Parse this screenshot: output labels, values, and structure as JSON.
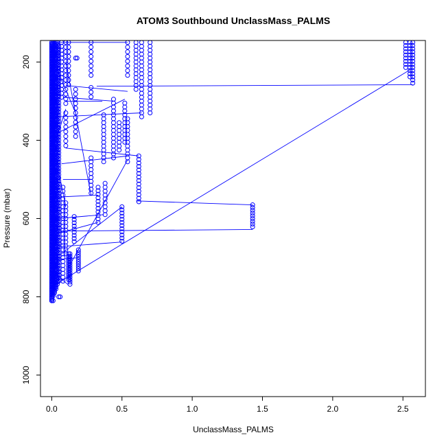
{
  "chart_data": {
    "type": "scatter",
    "title": "ATOM3 Southbound UnclassMass_PALMS",
    "xlabel": "UnclassMass_PALMS",
    "ylabel": "Pressure (mbar)",
    "xlim": [
      -0.08,
      2.66
    ],
    "ylim": [
      1055,
      145
    ],
    "y_reversed": true,
    "grid": false,
    "legend": "none",
    "x_ticks": [
      0.0,
      0.5,
      1.0,
      1.5,
      2.0,
      2.5
    ],
    "x_tick_labels": [
      "0.0",
      "0.5",
      "1.0",
      "1.5",
      "2.0",
      "2.5"
    ],
    "y_ticks": [
      200,
      400,
      600,
      800,
      1000
    ],
    "y_tick_labels": [
      "200",
      "400",
      "600",
      "800",
      "1000"
    ],
    "series": [
      {
        "color": "#0000ff",
        "marker": "open-circle",
        "columns": [
          {
            "x": 0.0,
            "p_min": 150,
            "p_max": 810,
            "step": 3
          },
          {
            "x": 0.01,
            "p_min": 150,
            "p_max": 800,
            "step": 4
          },
          {
            "x": 0.02,
            "p_min": 150,
            "p_max": 790,
            "step": 4
          },
          {
            "x": 0.03,
            "p_min": 150,
            "p_max": 780,
            "step": 5
          },
          {
            "x": 0.04,
            "p_min": 150,
            "p_max": 770,
            "step": 6
          },
          {
            "x": 0.05,
            "p_min": 160,
            "p_max": 760,
            "step": 8
          },
          {
            "x": 0.07,
            "p_min": 150,
            "p_max": 290,
            "step": 10
          },
          {
            "x": 0.08,
            "p_min": 520,
            "p_max": 760,
            "step": 10
          },
          {
            "x": 0.1,
            "p_min": 150,
            "p_max": 310,
            "step": 12
          },
          {
            "x": 0.1,
            "p_min": 330,
            "p_max": 415,
            "step": 12
          },
          {
            "x": 0.1,
            "p_min": 560,
            "p_max": 690,
            "step": 10
          },
          {
            "x": 0.12,
            "p_min": 150,
            "p_max": 265,
            "step": 12
          },
          {
            "x": 0.12,
            "p_min": 690,
            "p_max": 760,
            "step": 6
          },
          {
            "x": 0.13,
            "p_min": 690,
            "p_max": 770,
            "step": 6
          },
          {
            "x": 0.16,
            "p_min": 595,
            "p_max": 660,
            "step": 8
          },
          {
            "x": 0.17,
            "p_min": 270,
            "p_max": 400,
            "step": 12
          },
          {
            "x": 0.19,
            "p_min": 680,
            "p_max": 735,
            "step": 6
          },
          {
            "x": 0.28,
            "p_min": 150,
            "p_max": 245,
            "step": 12
          },
          {
            "x": 0.28,
            "p_min": 265,
            "p_max": 295,
            "step": 12
          },
          {
            "x": 0.28,
            "p_min": 445,
            "p_max": 540,
            "step": 10
          },
          {
            "x": 0.33,
            "p_min": 520,
            "p_max": 610,
            "step": 9
          },
          {
            "x": 0.37,
            "p_min": 335,
            "p_max": 460,
            "step": 10
          },
          {
            "x": 0.38,
            "p_min": 510,
            "p_max": 590,
            "step": 10
          },
          {
            "x": 0.44,
            "p_min": 295,
            "p_max": 445,
            "step": 10
          },
          {
            "x": 0.48,
            "p_min": 355,
            "p_max": 430,
            "step": 10
          },
          {
            "x": 0.5,
            "p_min": 570,
            "p_max": 665,
            "step": 8
          },
          {
            "x": 0.52,
            "p_min": 305,
            "p_max": 410,
            "step": 10
          },
          {
            "x": 0.54,
            "p_min": 150,
            "p_max": 245,
            "step": 12
          },
          {
            "x": 0.54,
            "p_min": 345,
            "p_max": 455,
            "step": 10
          },
          {
            "x": 0.6,
            "p_min": 150,
            "p_max": 275,
            "step": 10
          },
          {
            "x": 0.62,
            "p_min": 440,
            "p_max": 565,
            "step": 9
          },
          {
            "x": 0.64,
            "p_min": 150,
            "p_max": 345,
            "step": 10
          },
          {
            "x": 0.7,
            "p_min": 150,
            "p_max": 330,
            "step": 10
          },
          {
            "x": 1.43,
            "p_min": 565,
            "p_max": 625,
            "step": 7
          },
          {
            "x": 2.52,
            "p_min": 150,
            "p_max": 220,
            "step": 8
          },
          {
            "x": 2.55,
            "p_min": 150,
            "p_max": 240,
            "step": 8
          },
          {
            "x": 2.57,
            "p_min": 150,
            "p_max": 255,
            "step": 8
          }
        ],
        "points": [
          {
            "x": 0.17,
            "y": 190
          },
          {
            "x": 0.18,
            "y": 190
          },
          {
            "x": 0.05,
            "y": 800
          },
          {
            "x": 0.06,
            "y": 800
          },
          {
            "x": 0.01,
            "y": 810
          },
          {
            "x": 0.0,
            "y": 810
          }
        ],
        "segments": [
          {
            "x1": 0.32,
            "y1": 262,
            "x2": 2.57,
            "y2": 258
          },
          {
            "x1": 0.02,
            "y1": 770,
            "x2": 2.55,
            "y2": 220
          },
          {
            "x1": 0.6,
            "y1": 555,
            "x2": 1.43,
            "y2": 565
          },
          {
            "x1": 0.05,
            "y1": 632,
            "x2": 1.43,
            "y2": 628
          },
          {
            "x1": 0.05,
            "y1": 672,
            "x2": 0.5,
            "y2": 660
          },
          {
            "x1": 0.08,
            "y1": 290,
            "x2": 0.44,
            "y2": 300
          },
          {
            "x1": 0.05,
            "y1": 380,
            "x2": 0.52,
            "y2": 295
          },
          {
            "x1": 0.1,
            "y1": 260,
            "x2": 0.54,
            "y2": 275
          },
          {
            "x1": 0.07,
            "y1": 460,
            "x2": 0.54,
            "y2": 440
          },
          {
            "x1": 0.1,
            "y1": 420,
            "x2": 0.62,
            "y2": 440
          },
          {
            "x1": 0.04,
            "y1": 340,
            "x2": 0.64,
            "y2": 330
          },
          {
            "x1": 0.05,
            "y1": 545,
            "x2": 0.33,
            "y2": 540
          },
          {
            "x1": 0.12,
            "y1": 725,
            "x2": 0.54,
            "y2": 450
          },
          {
            "x1": 0.07,
            "y1": 690,
            "x2": 0.5,
            "y2": 570
          },
          {
            "x1": 0.04,
            "y1": 600,
            "x2": 0.37,
            "y2": 590
          },
          {
            "x1": 0.03,
            "y1": 705,
            "x2": 0.19,
            "y2": 700
          },
          {
            "x1": 0.08,
            "y1": 500,
            "x2": 0.28,
            "y2": 500
          },
          {
            "x1": 0.02,
            "y1": 640,
            "x2": 0.33,
            "y2": 610
          },
          {
            "x1": 0.1,
            "y1": 200,
            "x2": 0.28,
            "y2": 540
          },
          {
            "x1": 0.04,
            "y1": 220,
            "x2": 0.17,
            "y2": 330
          },
          {
            "x1": 0.1,
            "y1": 300,
            "x2": 0.36,
            "y2": 300
          },
          {
            "x1": 0.01,
            "y1": 560,
            "x2": 0.05,
            "y2": 760
          },
          {
            "x1": 0.03,
            "y1": 150,
            "x2": 0.54,
            "y2": 150
          },
          {
            "x1": 0.05,
            "y1": 480,
            "x2": 0.1,
            "y2": 570
          },
          {
            "x1": 0.02,
            "y1": 740,
            "x2": 0.12,
            "y2": 770
          },
          {
            "x1": 0.03,
            "y1": 400,
            "x2": 0.1,
            "y2": 320
          }
        ]
      }
    ]
  }
}
